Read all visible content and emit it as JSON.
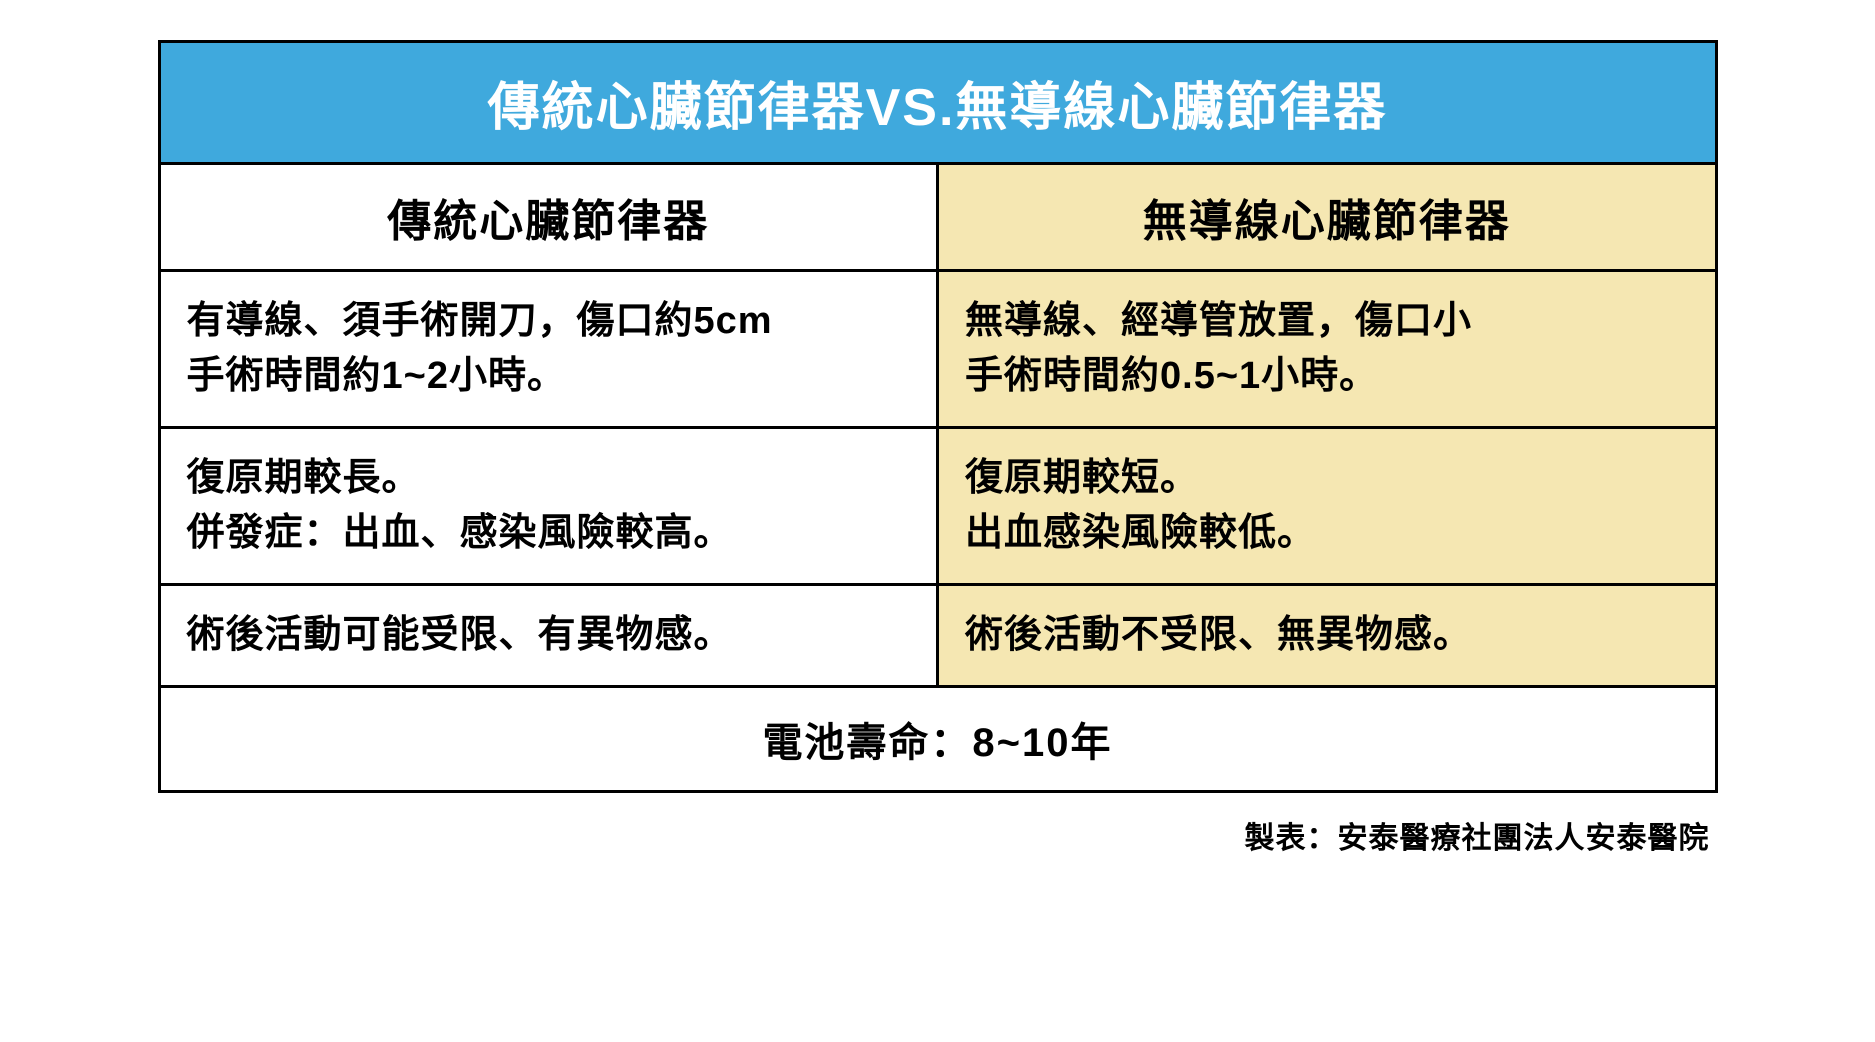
{
  "table": {
    "type": "table",
    "title": "傳統心臟節律器VS.無導線心臟節律器",
    "title_bg": "#3fa9dd",
    "title_color": "#ffffff",
    "border_color": "#000000",
    "columns": [
      {
        "label": "傳統心臟節律器",
        "bg": "#ffffff",
        "text": "#000000"
      },
      {
        "label": "無導線心臟節律器",
        "bg": "#f5e7b2",
        "text": "#000000"
      }
    ],
    "rows": [
      {
        "left": "有導線、須手術開刀，傷口約5cm\n手術時間約1~2小時。",
        "right": "無導線、經導管放置，傷口小\n手術時間約0.5~1小時。"
      },
      {
        "left": "復原期較長。\n併發症：出血、感染風險較高。",
        "right": "復原期較短。\n出血感染風險較低。"
      },
      {
        "left": "術後活動可能受限、有異物感。",
        "right": "術後活動不受限、無異物感。"
      }
    ],
    "span_row": {
      "text": "電池壽命：8~10年",
      "bg": "#ffffff",
      "text_color": "#000000"
    },
    "left_col_bg": "#ffffff",
    "right_col_bg": "#f5e7b2",
    "body_text_color": "#000000",
    "title_fontsize": 52,
    "colhead_fontsize": 44,
    "body_fontsize": 38
  },
  "credit": "製表：安泰醫療社團法人安泰醫院",
  "credit_color": "#000000"
}
